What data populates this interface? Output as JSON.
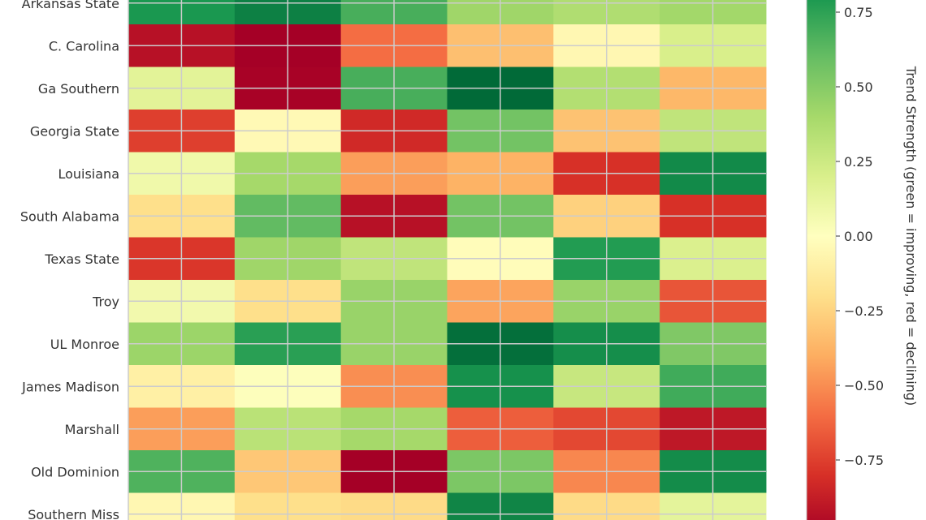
{
  "chart_data": {
    "type": "heatmap",
    "title": "",
    "xlabel": "",
    "ylabel": "",
    "colormap": "RdYlGn",
    "vmin": -1,
    "vmax": 1,
    "grid": true,
    "rows": [
      "Arkansas State",
      "C. Carolina",
      "Ga Southern",
      "Georgia State",
      "Louisiana",
      "South Alabama",
      "Texas State",
      "Troy",
      "UL Monroe",
      "James Madison",
      "Marshall",
      "Old Dominion",
      "Southern Miss"
    ],
    "values": [
      [
        0.8,
        0.9,
        0.68,
        0.42,
        0.36,
        0.41
      ],
      [
        -0.93,
        -1.0,
        -0.6,
        -0.33,
        -0.05,
        0.2
      ],
      [
        0.15,
        -0.99,
        0.68,
        0.99,
        0.35,
        -0.36
      ],
      [
        -0.75,
        -0.04,
        -0.83,
        0.56,
        -0.32,
        0.3
      ],
      [
        0.08,
        0.4,
        -0.45,
        -0.38,
        -0.8,
        0.86
      ],
      [
        -0.2,
        0.61,
        -0.93,
        0.56,
        -0.26,
        -0.8
      ],
      [
        -0.78,
        0.42,
        0.3,
        -0.02,
        0.78,
        0.19
      ],
      [
        0.07,
        -0.2,
        0.44,
        -0.43,
        0.44,
        -0.68
      ],
      [
        0.43,
        0.76,
        0.44,
        0.97,
        0.84,
        0.52
      ],
      [
        -0.1,
        0.01,
        -0.5,
        0.83,
        0.27,
        0.7
      ],
      [
        -0.45,
        0.32,
        0.4,
        -0.65,
        -0.72,
        -0.9
      ],
      [
        0.66,
        -0.3,
        -1.0,
        0.53,
        -0.52,
        0.85
      ],
      [
        -0.05,
        -0.2,
        -0.22,
        0.88,
        -0.22,
        0.14
      ]
    ],
    "colorbar": {
      "label": "Trend Strength (green = improving, red = declining)",
      "ticks": [
        0.75,
        0.5,
        0.25,
        0,
        -0.25,
        -0.5,
        -0.75
      ],
      "tick_labels": [
        "0.75",
        "0.50",
        "0.25",
        "0.00",
        "−0.25",
        "−0.50",
        "−0.75"
      ]
    }
  }
}
